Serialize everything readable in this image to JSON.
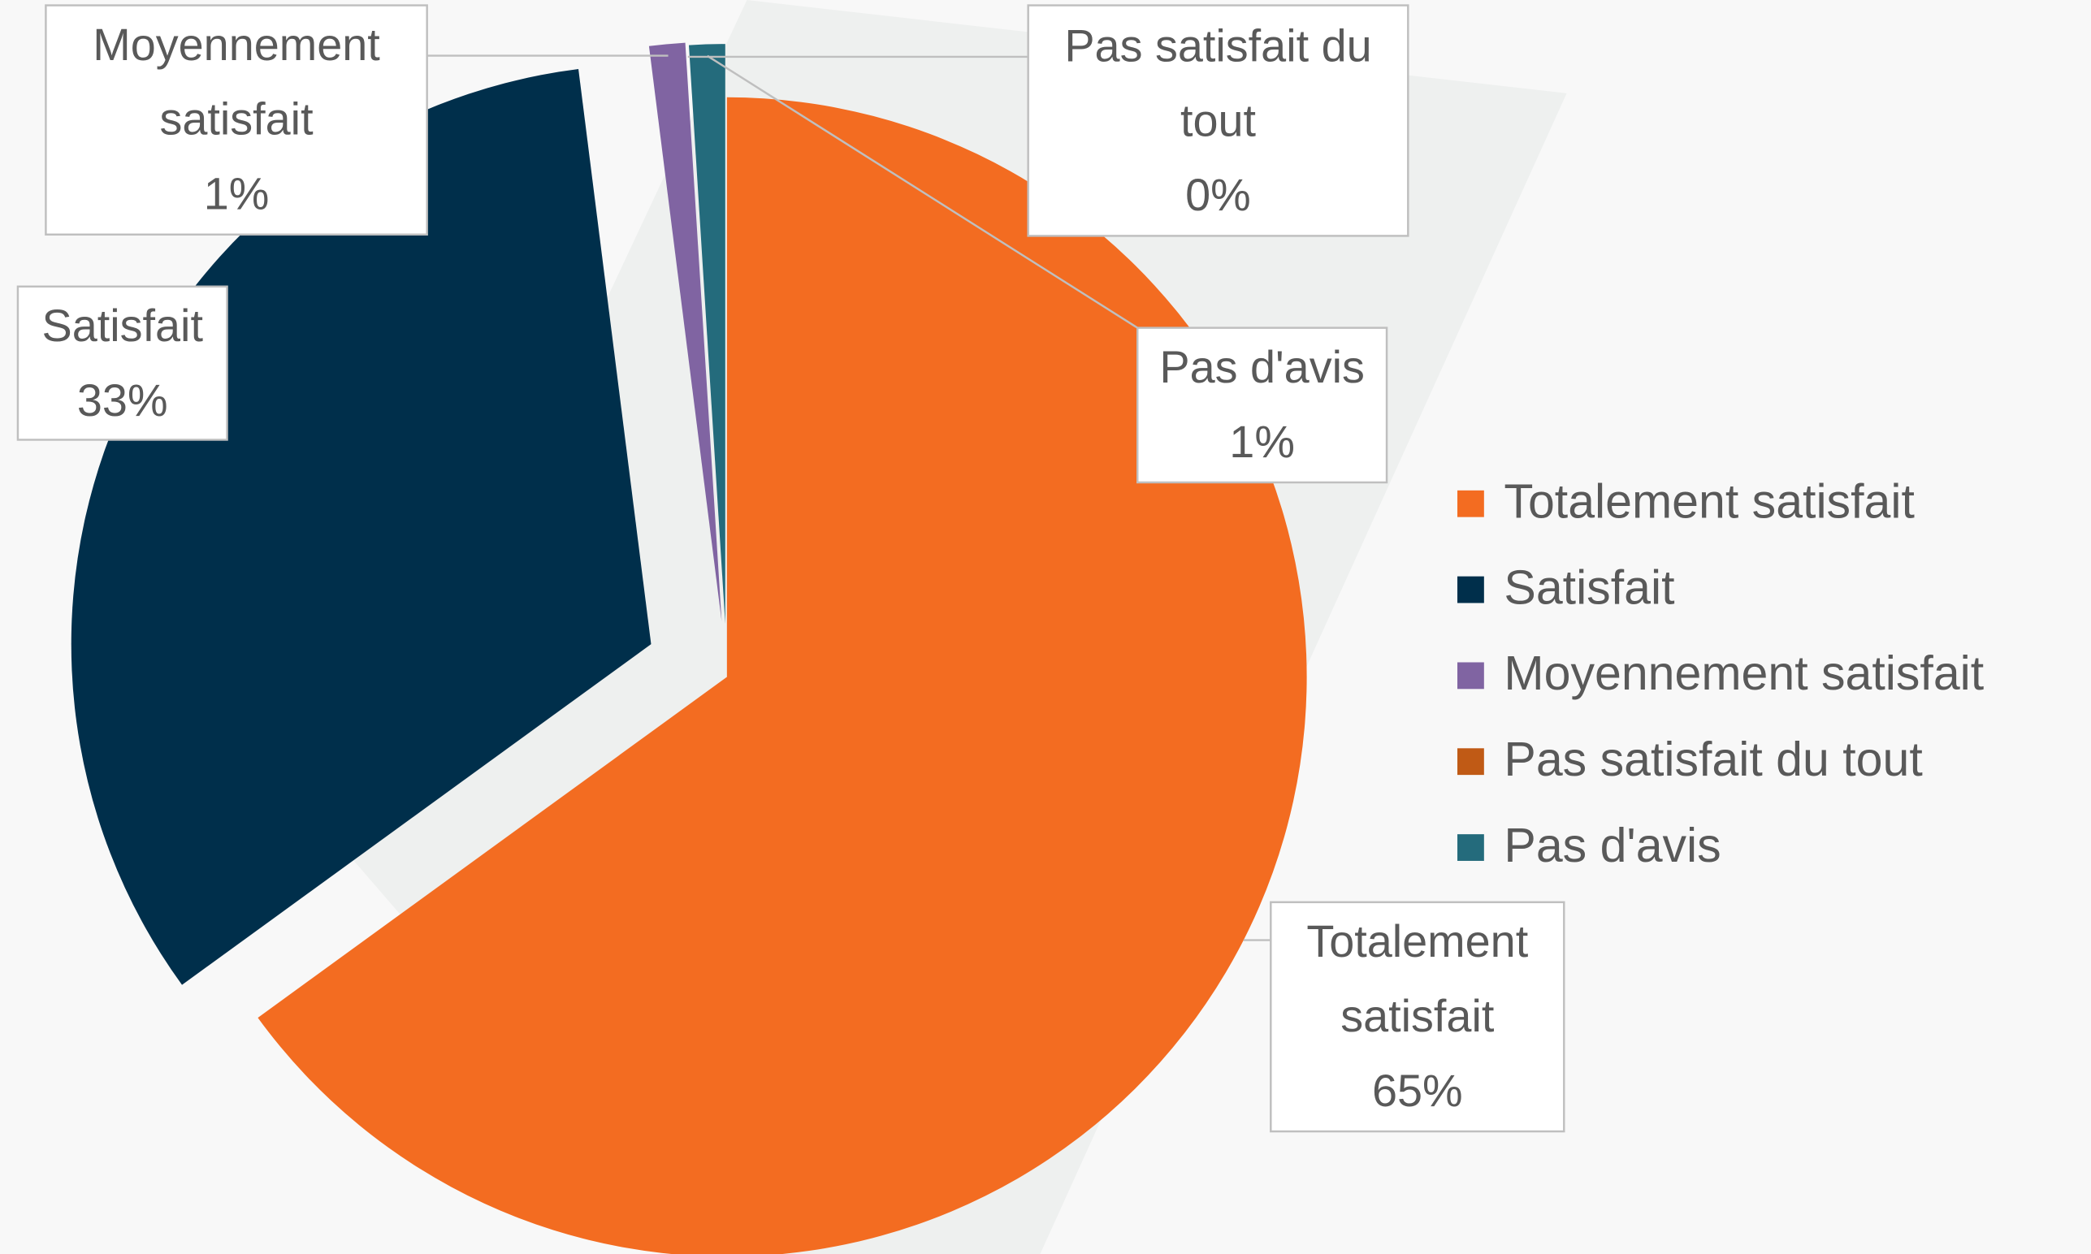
{
  "chart_data": {
    "type": "pie",
    "categories": [
      "Totalement satisfait",
      "Satisfait",
      "Moyennement satisfait",
      "Pas satisfait du tout",
      "Pas d'avis"
    ],
    "values": [
      65,
      33,
      1,
      0,
      1
    ],
    "value_labels": [
      "65%",
      "33%",
      "1%",
      "0%",
      "1%"
    ],
    "colors": [
      "#f36c21",
      "#002f4b",
      "#8064a2",
      "#c05a15",
      "#246b7c"
    ],
    "legend": "right"
  }
}
